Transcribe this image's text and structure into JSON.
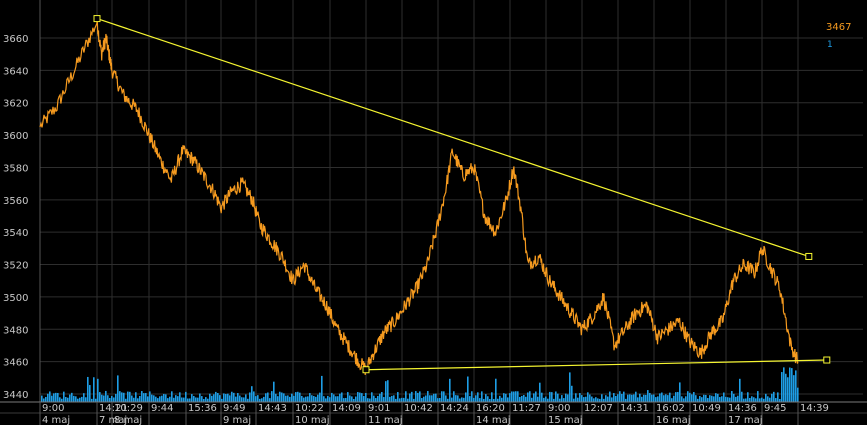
{
  "chart_data": {
    "type": "line",
    "y_axis": {
      "min": 3440,
      "max": 3670,
      "ticks": [
        3440,
        3460,
        3480,
        3500,
        3520,
        3540,
        3560,
        3580,
        3600,
        3620,
        3640,
        3660
      ]
    },
    "x_time_labels": [
      "9:00",
      "14:21",
      "10:29",
      "9:44",
      "15:36",
      "9:49",
      "14:43",
      "10:22",
      "14:09",
      "9:01",
      "10:42",
      "14:24",
      "16:20",
      "11:27",
      "9:00",
      "12:07",
      "14:31",
      "16:02",
      "10:49",
      "14:36",
      "9:45",
      "14:39"
    ],
    "x_date_labels": [
      {
        "label": "4 maj",
        "at": 0
      },
      {
        "label": "7 maj",
        "at": 1
      },
      {
        "label": "8 maj",
        "at": 2
      },
      {
        "label": "9 maj",
        "at": 5
      },
      {
        "label": "10 maj",
        "at": 7
      },
      {
        "label": "11 maj",
        "at": 9
      },
      {
        "label": "14 maj",
        "at": 12
      },
      {
        "label": "15 maj",
        "at": 14
      },
      {
        "label": "16 maj",
        "at": 17
      },
      {
        "label": "17 maj",
        "at": 19
      }
    ],
    "grid": true,
    "series": [
      {
        "kind": "price",
        "color": "#f59a1f",
        "anchors": [
          [
            0,
            3605
          ],
          [
            0.3,
            3618
          ],
          [
            0.6,
            3640
          ],
          [
            1.0,
            3670
          ],
          [
            1.3,
            3650
          ],
          [
            1.6,
            3660
          ],
          [
            2.0,
            3640
          ],
          [
            2.3,
            3625
          ],
          [
            2.7,
            3615
          ],
          [
            3.0,
            3600
          ],
          [
            3.3,
            3585
          ],
          [
            3.6,
            3572
          ],
          [
            3.9,
            3590
          ],
          [
            4.2,
            3585
          ],
          [
            4.5,
            3575
          ],
          [
            4.8,
            3565
          ],
          [
            5.0,
            3555
          ],
          [
            5.3,
            3565
          ],
          [
            5.6,
            3570
          ],
          [
            5.9,
            3560
          ],
          [
            6.1,
            3545
          ],
          [
            6.4,
            3535
          ],
          [
            6.7,
            3525
          ],
          [
            7.0,
            3510
          ],
          [
            7.3,
            3520
          ],
          [
            7.6,
            3505
          ],
          [
            7.9,
            3495
          ],
          [
            8.2,
            3480
          ],
          [
            8.5,
            3470
          ],
          [
            8.8,
            3460
          ],
          [
            9.0,
            3455
          ],
          [
            9.2,
            3465
          ],
          [
            9.5,
            3478
          ],
          [
            9.8,
            3485
          ],
          [
            10.1,
            3495
          ],
          [
            10.4,
            3505
          ],
          [
            10.7,
            3520
          ],
          [
            11.0,
            3545
          ],
          [
            11.2,
            3565
          ],
          [
            11.4,
            3590
          ],
          [
            11.7,
            3575
          ],
          [
            12.0,
            3580
          ],
          [
            12.3,
            3550
          ],
          [
            12.6,
            3540
          ],
          [
            12.9,
            3560
          ],
          [
            13.1,
            3580
          ],
          [
            13.3,
            3555
          ],
          [
            13.5,
            3520
          ],
          [
            13.8,
            3525
          ],
          [
            14.1,
            3510
          ],
          [
            14.4,
            3500
          ],
          [
            14.7,
            3490
          ],
          [
            15.0,
            3480
          ],
          [
            15.3,
            3488
          ],
          [
            15.6,
            3500
          ],
          [
            15.9,
            3470
          ],
          [
            16.2,
            3480
          ],
          [
            16.5,
            3490
          ],
          [
            16.8,
            3495
          ],
          [
            17.1,
            3475
          ],
          [
            17.4,
            3480
          ],
          [
            17.7,
            3485
          ],
          [
            18.0,
            3472
          ],
          [
            18.3,
            3465
          ],
          [
            18.6,
            3478
          ],
          [
            18.9,
            3485
          ],
          [
            19.2,
            3510
          ],
          [
            19.5,
            3520
          ],
          [
            19.8,
            3515
          ],
          [
            20.0,
            3530
          ],
          [
            20.2,
            3520
          ],
          [
            20.5,
            3505
          ],
          [
            20.8,
            3470
          ],
          [
            21.0,
            3460
          ]
        ]
      },
      {
        "kind": "volume",
        "color": "#1e9ee6",
        "note": "1"
      }
    ],
    "trendlines": [
      {
        "color": "#f5f531",
        "from": [
          1.0,
          3672
        ],
        "to": [
          21.3,
          3525
        ]
      },
      {
        "color": "#f5f531",
        "from": [
          9.0,
          3455
        ],
        "to": [
          21.8,
          3461
        ]
      }
    ]
  },
  "legend": {
    "price_label": "3467",
    "volume_label": "1"
  }
}
